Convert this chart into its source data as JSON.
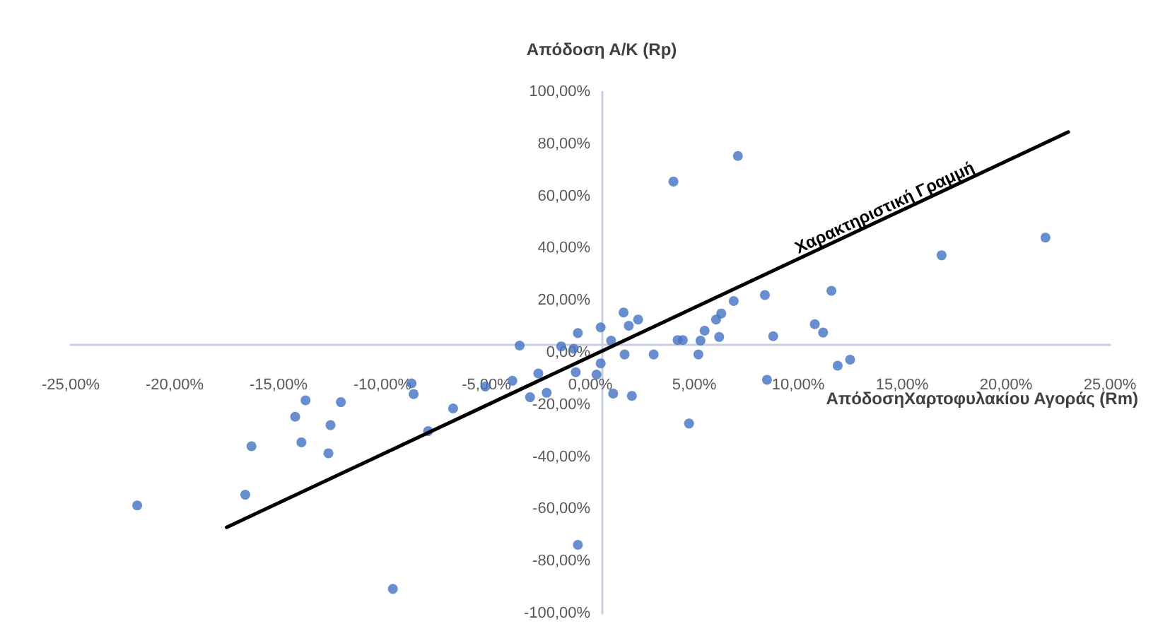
{
  "chart_data": {
    "type": "scatter",
    "xlabel": "ΑπόδοσηΧαρτοφυλακίου Αγοράς (Rm)",
    "ylabel": "Απόδοση Α/Κ (Rp)",
    "annotations": [
      "Χαρακτηριστική Γραμμή"
    ],
    "series": [
      {
        "color": "#4472c4",
        "marker": "circle",
        "x": [
          -21.8,
          -16.6,
          -16.3,
          -14.2,
          -13.9,
          -13.7,
          -12.5,
          -12.6,
          -12.0,
          -9.5,
          -8.6,
          -8.5,
          -7.8,
          -6.6,
          -5.05,
          -3.75,
          -3.4,
          -2.9,
          -2.5,
          -2.1,
          -1.4,
          -0.8,
          -0.6,
          -0.7,
          -0.6,
          0.3,
          0.5,
          0.5,
          1.0,
          1.1,
          1.6,
          1.65,
          1.85,
          2.0,
          2.3,
          3.05,
          4.2,
          4.45,
          4.75,
          5.2,
          5.3,
          5.5,
          6.05,
          6.3,
          6.2,
          6.9,
          8.4,
          8.5,
          8.8,
          10.8,
          11.2,
          11.6,
          11.9,
          12.5,
          4.0,
          7.1,
          16.9,
          21.9
        ],
        "values": [
          -58.6,
          -54.5,
          -35.9,
          -24.6,
          -34.4,
          -18.3,
          -27.8,
          -38.6,
          -19.0,
          -90.6,
          -11.8,
          -15.9,
          -30.1,
          -21.4,
          -13.0,
          -10.8,
          2.7,
          -17.1,
          -8.0,
          -15.4,
          2.4,
          1.5,
          7.5,
          -7.5,
          -73.7,
          -8.4,
          9.7,
          -4.1,
          4.6,
          -15.7,
          15.4,
          -0.7,
          10.3,
          -16.6,
          12.7,
          -0.7,
          4.8,
          4.8,
          -27.2,
          -0.7,
          4.6,
          8.4,
          12.7,
          15.0,
          6.0,
          19.8,
          22.1,
          -10.4,
          6.3,
          10.9,
          7.7,
          23.7,
          -5.0,
          -2.7,
          65.6,
          75.4,
          37.3,
          44.1
        ]
      },
      {
        "type": "line",
        "color": "#000000",
        "marker": "none",
        "line_style": "solid",
        "x": [
          -17.5,
          23.0
        ],
        "values": [
          -67,
          84.6
        ]
      }
    ],
    "xlim": [
      -25,
      25
    ],
    "xticks": [
      {
        "value": -25,
        "label": "-25,00%"
      },
      {
        "value": -20,
        "label": "-20,00%"
      },
      {
        "value": -15,
        "label": "-15,00%"
      },
      {
        "value": -10,
        "label": "-10,00%"
      },
      {
        "value": -5,
        "label": "-5,00%"
      },
      {
        "value": 0,
        "label": "0,00%"
      },
      {
        "value": 5,
        "label": "5,00%"
      },
      {
        "value": 10,
        "label": "10,00%"
      },
      {
        "value": 15,
        "label": "15,00%"
      },
      {
        "value": 20,
        "label": "20,00%"
      },
      {
        "value": 25,
        "label": "25,00%"
      }
    ],
    "ylim": [
      -100,
      100
    ],
    "yticks": [
      {
        "value": -100,
        "label": "-100,00%"
      },
      {
        "value": -80,
        "label": "-80,00%"
      },
      {
        "value": -60,
        "label": "-60,00%"
      },
      {
        "value": -40,
        "label": "-40,00%"
      },
      {
        "value": -20,
        "label": "-20,00%"
      },
      {
        "value": 0,
        "label": "0,00%"
      },
      {
        "value": 20,
        "label": "20,00%"
      },
      {
        "value": 40,
        "label": "40,00%"
      },
      {
        "value": 60,
        "label": "60,00%"
      },
      {
        "value": 80,
        "label": "80,00%"
      },
      {
        "value": 100,
        "label": "100,00%"
      }
    ]
  }
}
